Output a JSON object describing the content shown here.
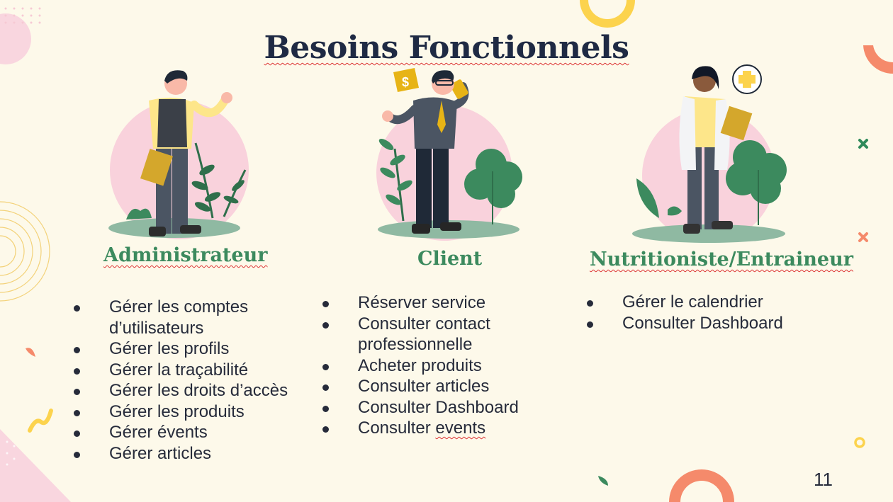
{
  "slide": {
    "title": "Besoins Fonctionnels",
    "page_number": "11"
  },
  "columns": [
    {
      "role": "Administrateur",
      "items": [
        "Gérer les comptes d’utilisateurs",
        "Gérer les profils",
        "Gérer la traçabilité",
        "Gérer les droits d’accès",
        "Gérer les produits",
        "Gérer évents",
        "Gérer articles"
      ]
    },
    {
      "role": "Client",
      "items": [
        "Réserver service",
        "Consulter contact professionnelle",
        "Acheter produits",
        "Consulter articles",
        "Consulter Dashboard",
        "Consulter",
        "events"
      ]
    },
    {
      "role": "Nutritioniste/Entraineur",
      "items": [
        "Gérer le calendrier",
        "Consulter Dashboard"
      ]
    }
  ],
  "colors": {
    "background": "#fdf9ea",
    "title": "#1f2a44",
    "role": "#3c8a5e",
    "text": "#262b3a",
    "accent_yellow": "#fcd34d",
    "accent_coral": "#f58a6b",
    "accent_pink": "#f9d6df",
    "accent_green": "#3c8a5e"
  }
}
